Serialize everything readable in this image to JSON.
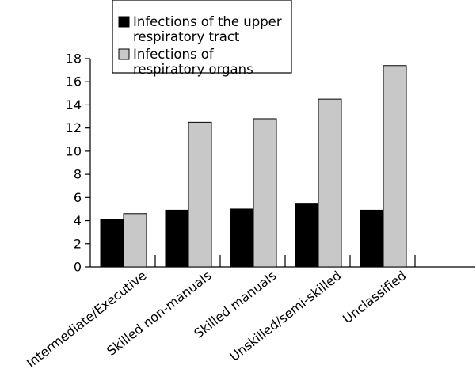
{
  "chart_data": {
    "type": "bar",
    "categories": [
      "Intermediate/Executive",
      "Skilled non-manuals",
      "Skilled manuals",
      "Unskilled/semi-skilled",
      "Unclassified"
    ],
    "series": [
      {
        "name": "Infections of the upper respiratory tract",
        "legend_lines": [
          "Infections of the upper",
          "respiratory tract"
        ],
        "color": "#000000",
        "values": [
          4.1,
          4.9,
          5.0,
          5.5,
          4.9
        ]
      },
      {
        "name": "Infections of respiratory organs",
        "legend_lines": [
          "Infections of",
          "respiratory organs"
        ],
        "color": "#c8c8c8",
        "values": [
          4.6,
          12.5,
          12.8,
          14.5,
          17.4
        ]
      }
    ],
    "yticks": [
      0,
      2,
      4,
      6,
      8,
      10,
      12,
      14,
      16,
      18
    ],
    "ylim": [
      0,
      18
    ],
    "grid": false,
    "legend_position": "top"
  }
}
